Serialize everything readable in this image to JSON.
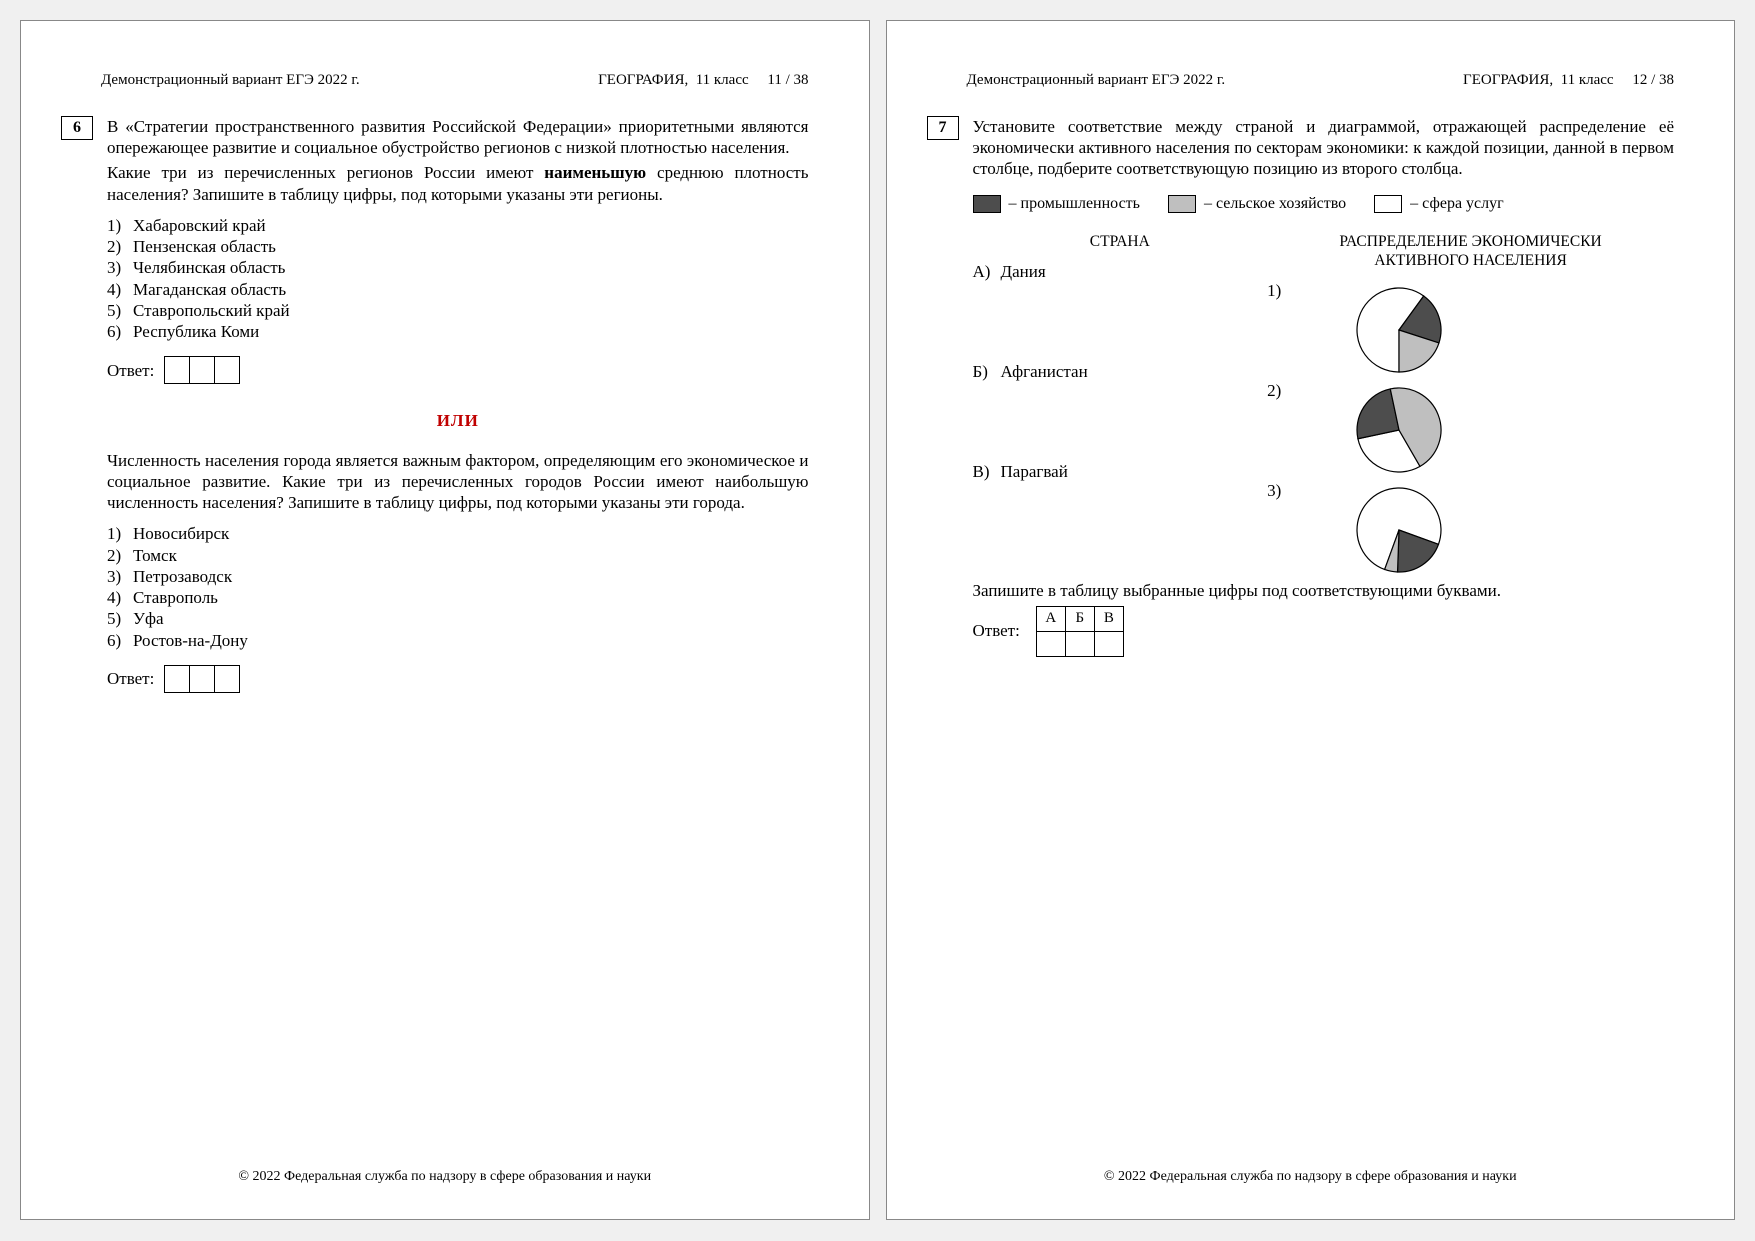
{
  "colors": {
    "page_bg": "#ffffff",
    "text": "#000000",
    "accent_red": "#c00000",
    "pie_industry": "#4d4d4d",
    "pie_agriculture": "#bfbfbf",
    "pie_services": "#ffffff",
    "pie_stroke": "#000000"
  },
  "left": {
    "header_left": "Демонстрационный вариант ЕГЭ 2022 г.",
    "header_right": "ГЕОГРАФИЯ,  11 класс     11 / 38",
    "qnum": "6",
    "para1": "В «Стратегии пространственного развития Российской Федерации» приоритетными являются опережающее развитие и социальное обустройство регионов с низкой плотностью населения.",
    "para2_a": "Какие три из перечисленных регионов России имеют ",
    "para2_bold": "наименьшую",
    "para2_b": " среднюю плотность населения? Запишите в таблицу цифры, под которыми указаны эти регионы.",
    "opts1": [
      "Хабаровский край",
      "Пензенская область",
      "Челябинская область",
      "Магаданская область",
      "Ставропольский край",
      "Республика Коми"
    ],
    "answer_label": "Ответ:",
    "or_label": "ИЛИ",
    "para3": "Численность населения города является важным фактором, определяющим его экономическое и социальное развитие. Какие три из перечисленных городов России имеют наибольшую численность населения? Запишите в таблицу цифры, под которыми указаны эти города.",
    "opts2": [
      "Новосибирск",
      "Томск",
      "Петрозаводск",
      "Ставрополь",
      "Уфа",
      "Ростов-на-Дону"
    ],
    "footer": "© 2022 Федеральная служба по надзору в сфере образования и науки"
  },
  "right": {
    "header_left": "Демонстрационный вариант ЕГЭ 2022 г.",
    "header_right": "ГЕОГРАФИЯ,  11 класс     12 / 38",
    "qnum": "7",
    "para1": "Установите соответствие между страной и диаграммой, отражающей распределение её экономически активного населения по секторам экономики: к каждой позиции, данной в первом столбце, подберите соответствующую позицию из второго столбца.",
    "legend": {
      "industry": "– промышленность",
      "agriculture": "– сельское хозяйство",
      "services": "– сфера услуг"
    },
    "col_country": "СТРАНА",
    "col_dist_l1": "РАСПРЕДЕЛЕНИЕ ЭКОНОМИЧЕСКИ",
    "col_dist_l2": "АКТИВНОГО НАСЕЛЕНИЯ",
    "countries": [
      {
        "letter": "А)",
        "name": "Дания"
      },
      {
        "letter": "Б)",
        "name": "Афганистан"
      },
      {
        "letter": "В)",
        "name": "Парагвай"
      }
    ],
    "pies": [
      {
        "label": "1)",
        "type": "pie",
        "radius": 42,
        "stroke": "#000000",
        "slices": [
          {
            "name": "services",
            "value": 60,
            "fill": "#ffffff"
          },
          {
            "name": "industry",
            "value": 20,
            "fill": "#4d4d4d"
          },
          {
            "name": "agriculture",
            "value": 20,
            "fill": "#bfbfbf"
          }
        ],
        "start_angle_deg": -180
      },
      {
        "label": "2)",
        "type": "pie",
        "radius": 42,
        "stroke": "#000000",
        "slices": [
          {
            "name": "services",
            "value": 30,
            "fill": "#ffffff"
          },
          {
            "name": "industry",
            "value": 25,
            "fill": "#4d4d4d"
          },
          {
            "name": "agriculture",
            "value": 45,
            "fill": "#bfbfbf"
          }
        ],
        "start_angle_deg": -210
      },
      {
        "label": "3)",
        "type": "pie",
        "radius": 42,
        "stroke": "#000000",
        "slices": [
          {
            "name": "services",
            "value": 75,
            "fill": "#ffffff"
          },
          {
            "name": "industry",
            "value": 20,
            "fill": "#4d4d4d"
          },
          {
            "name": "agriculture",
            "value": 5,
            "fill": "#bfbfbf"
          }
        ],
        "start_angle_deg": -160
      }
    ],
    "instr": "Запишите в таблицу выбранные цифры под соответствующими буквами.",
    "answer_label": "Ответ:",
    "table_heads": [
      "А",
      "Б",
      "В"
    ],
    "footer": "© 2022 Федеральная служба по надзору в сфере образования и науки"
  }
}
